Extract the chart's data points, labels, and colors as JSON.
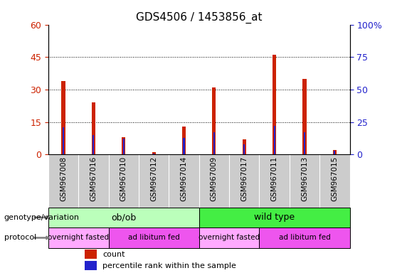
{
  "title": "GDS4506 / 1453856_at",
  "samples": [
    "GSM967008",
    "GSM967016",
    "GSM967010",
    "GSM967012",
    "GSM967014",
    "GSM967009",
    "GSM967017",
    "GSM967011",
    "GSM967013",
    "GSM967015"
  ],
  "count_values": [
    34,
    24,
    8,
    1,
    13,
    31,
    7,
    46,
    35,
    2
  ],
  "percentile_values": [
    21,
    15,
    12,
    1,
    13,
    17,
    8,
    22,
    17,
    3
  ],
  "ylim_left": [
    0,
    60
  ],
  "ylim_right": [
    0,
    100
  ],
  "yticks_left": [
    0,
    15,
    30,
    45,
    60
  ],
  "yticks_right": [
    0,
    25,
    50,
    75,
    100
  ],
  "bar_color_count": "#cc2200",
  "bar_color_pct": "#2222cc",
  "count_bar_width": 0.12,
  "pct_bar_width": 0.05,
  "grid_color": "black",
  "genotype_groups": [
    {
      "label": "ob/ob",
      "start": 0,
      "end": 5,
      "color": "#bbffbb"
    },
    {
      "label": "wild type",
      "start": 5,
      "end": 10,
      "color": "#44ee44"
    }
  ],
  "protocol_groups": [
    {
      "label": "overnight fasted",
      "start": 0,
      "end": 2,
      "color": "#ffaaff"
    },
    {
      "label": "ad libitum fed",
      "start": 2,
      "end": 5,
      "color": "#ee55ee"
    },
    {
      "label": "overnight fasted",
      "start": 5,
      "end": 7,
      "color": "#ffaaff"
    },
    {
      "label": "ad libitum fed",
      "start": 7,
      "end": 10,
      "color": "#ee55ee"
    }
  ],
  "legend_count_label": "count",
  "legend_pct_label": "percentile rank within the sample",
  "genotype_label": "genotype/variation",
  "protocol_label": "protocol",
  "title_fontsize": 11,
  "tick_label_fontsize": 7.5,
  "annotation_fontsize": 8,
  "background_color": "#ffffff",
  "xtick_bg_color": "#cccccc"
}
